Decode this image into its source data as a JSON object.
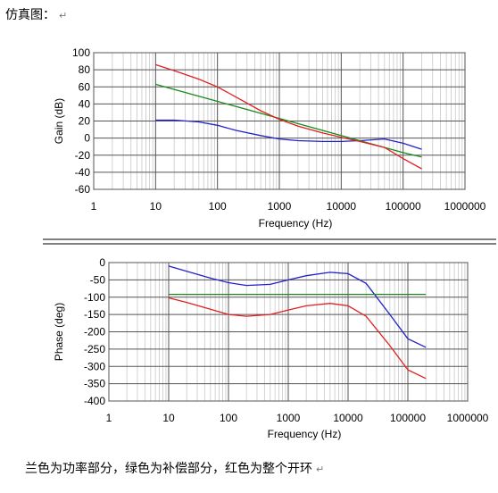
{
  "header": {
    "text": "仿真图：",
    "mark": "↵"
  },
  "footer": {
    "text": "兰色为功率部分，绿色为补偿部分，红色为整个开环",
    "mark": "↵"
  },
  "colors": {
    "power": "#2222cc",
    "compensation": "#1a8a1a",
    "open_loop": "#e02020"
  },
  "chart_data": [
    {
      "type": "line",
      "xscale": "log",
      "xlabel": "Frequency (Hz)",
      "ylabel": "Gain (dB)",
      "xlim": [
        1,
        1000000
      ],
      "ylim": [
        -60,
        100
      ],
      "xticks": [
        "1",
        "10",
        "100",
        "1000",
        "10000",
        "100000",
        "1000000"
      ],
      "yticks": [
        "100",
        "80",
        "60",
        "40",
        "20",
        "0",
        "-20",
        "-40",
        "-60"
      ],
      "grid": true,
      "series": [
        {
          "color": "#2222cc",
          "x": [
            10,
            20,
            50,
            100,
            200,
            500,
            1000,
            2000,
            5000,
            10000,
            20000,
            50000,
            100000,
            200000
          ],
          "y": [
            21,
            21,
            19,
            15,
            9,
            3,
            -1,
            -3,
            -4,
            -4,
            -3,
            -1,
            -6,
            -13
          ]
        },
        {
          "color": "#1a8a1a",
          "x": [
            10,
            100,
            1000,
            10000,
            100000,
            200000
          ],
          "y": [
            63,
            43,
            23,
            3,
            -17,
            -22
          ]
        },
        {
          "color": "#e02020",
          "x": [
            10,
            20,
            50,
            100,
            200,
            500,
            1000,
            2000,
            5000,
            10000,
            20000,
            50000,
            100000,
            200000
          ],
          "y": [
            86,
            79,
            69,
            60,
            48,
            32,
            22,
            14,
            6,
            1,
            -4,
            -11,
            -24,
            -36
          ]
        }
      ]
    },
    {
      "type": "line",
      "xscale": "log",
      "xlabel": "Frequency (Hz)",
      "ylabel": "Phase (deg)",
      "xlim": [
        1,
        1000000
      ],
      "ylim": [
        -400,
        0
      ],
      "xticks": [
        "1",
        "10",
        "100",
        "1000",
        "10000",
        "100000",
        "1000000"
      ],
      "yticks": [
        "0",
        "-50",
        "-100",
        "-150",
        "-200",
        "-250",
        "-300",
        "-350",
        "-400"
      ],
      "grid": true,
      "series": [
        {
          "color": "#2222cc",
          "x": [
            10,
            20,
            50,
            100,
            200,
            500,
            1000,
            2000,
            5000,
            10000,
            20000,
            50000,
            100000,
            200000
          ],
          "y": [
            -10,
            -25,
            -45,
            -58,
            -66,
            -63,
            -50,
            -38,
            -28,
            -32,
            -60,
            -150,
            -220,
            -245
          ]
        },
        {
          "color": "#1a8a1a",
          "x": [
            10,
            200000
          ],
          "y": [
            -92,
            -92
          ]
        },
        {
          "color": "#e02020",
          "x": [
            10,
            20,
            50,
            100,
            200,
            500,
            1000,
            2000,
            5000,
            10000,
            20000,
            50000,
            100000,
            200000
          ],
          "y": [
            -102,
            -115,
            -135,
            -150,
            -155,
            -150,
            -137,
            -125,
            -118,
            -125,
            -155,
            -240,
            -310,
            -335
          ]
        }
      ]
    }
  ]
}
